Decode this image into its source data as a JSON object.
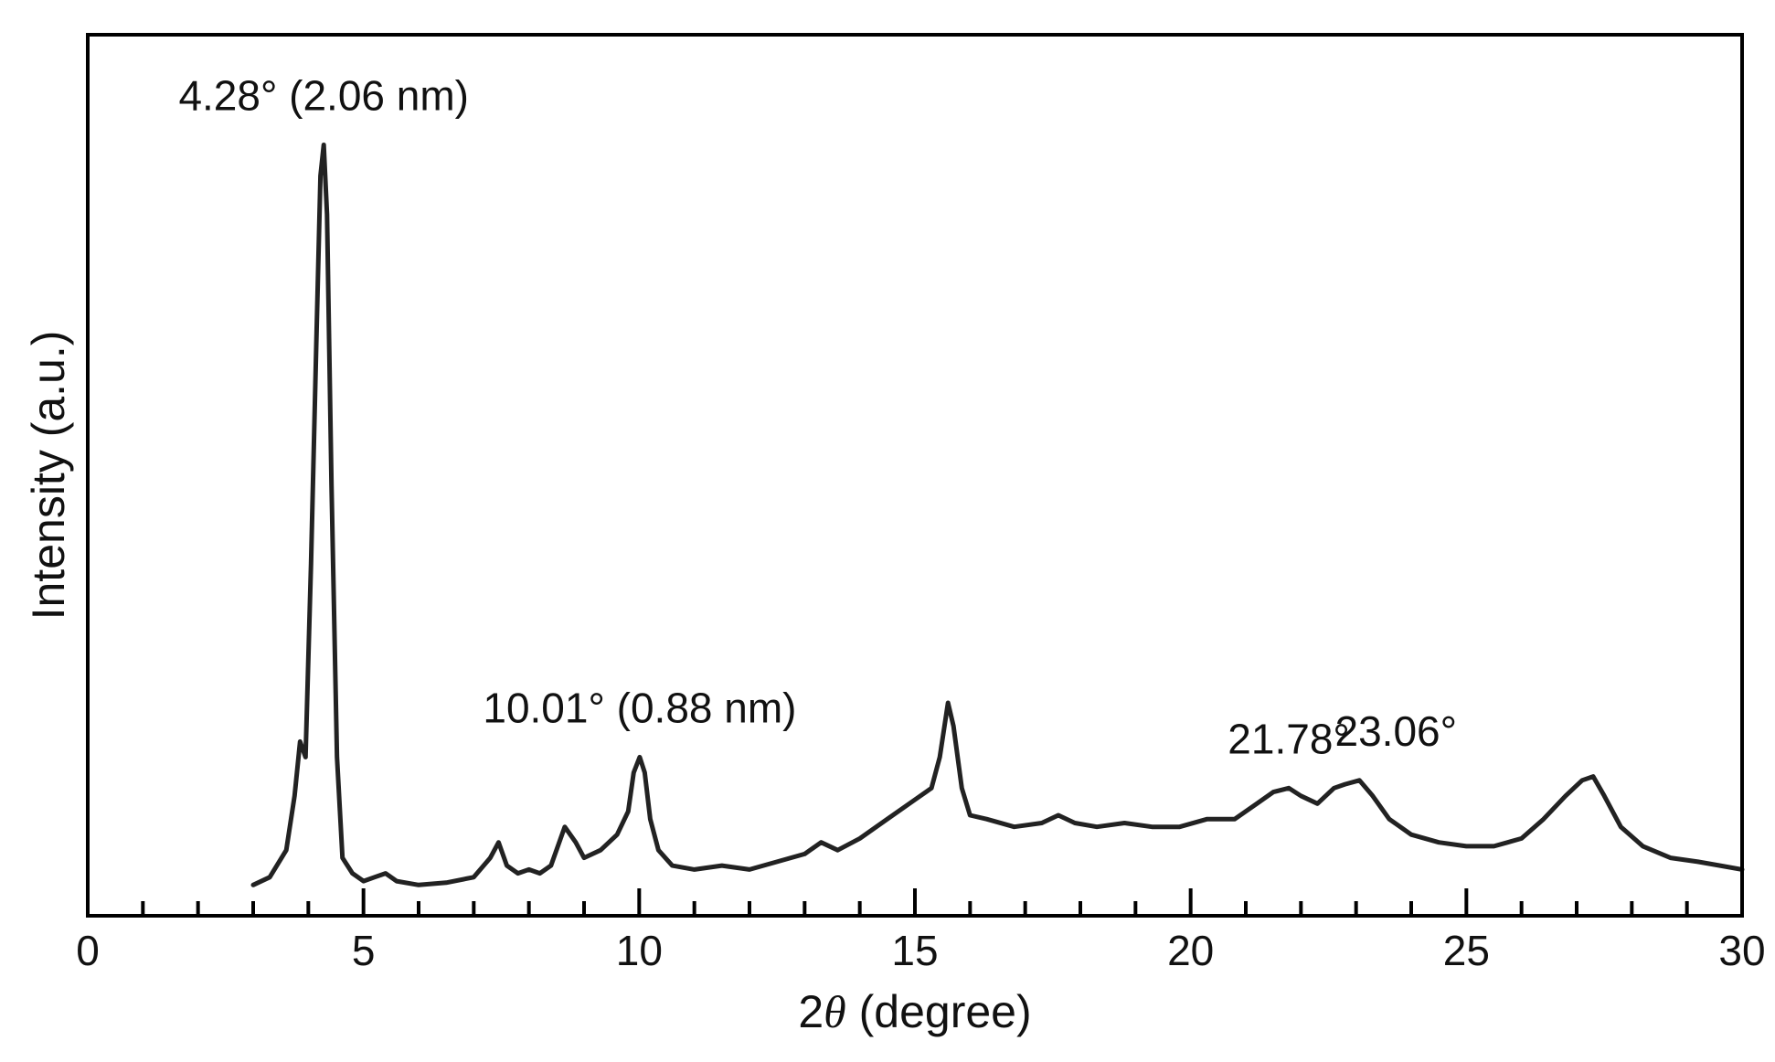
{
  "chart_data": {
    "type": "line",
    "title": "",
    "xlabel": {
      "prefix": "2",
      "symbol": "θ",
      "suffix": " (degree)"
    },
    "ylabel": "Intensity (a.u.)",
    "xlim": [
      0,
      30
    ],
    "ylim": [
      0,
      100
    ],
    "x_major_ticks": [
      0,
      5,
      10,
      15,
      20,
      25,
      30
    ],
    "x_tick_labels": [
      "0",
      "5",
      "10",
      "15",
      "20",
      "25",
      "30"
    ],
    "x_minor_step": 1,
    "y_ticks_shown": false,
    "grid": false,
    "legend": "none",
    "line_color": "#222222",
    "series": [
      {
        "x": [
          3.0,
          3.3,
          3.6,
          3.75,
          3.85,
          3.95,
          4.05,
          4.15,
          4.22,
          4.28,
          4.34,
          4.42,
          4.52,
          4.62,
          4.8,
          5.0,
          5.2,
          5.4,
          5.6,
          6.0,
          6.5,
          7.0,
          7.3,
          7.45,
          7.6,
          7.8,
          8.0,
          8.2,
          8.4,
          8.65,
          8.85,
          9.0,
          9.3,
          9.6,
          9.8,
          9.9,
          10.01,
          10.1,
          10.2,
          10.35,
          10.6,
          11.0,
          11.5,
          12.0,
          12.5,
          13.0,
          13.3,
          13.6,
          14.0,
          14.5,
          15.0,
          15.3,
          15.45,
          15.6,
          15.7,
          15.85,
          16.0,
          16.3,
          16.8,
          17.3,
          17.6,
          17.9,
          18.3,
          18.8,
          19.3,
          19.8,
          20.3,
          20.8,
          21.2,
          21.5,
          21.78,
          22.0,
          22.3,
          22.6,
          22.8,
          23.06,
          23.3,
          23.6,
          24.0,
          24.5,
          25.0,
          25.5,
          26.0,
          26.4,
          26.8,
          27.1,
          27.3,
          27.5,
          27.8,
          28.2,
          28.7,
          29.2,
          29.6,
          30.0
        ],
        "y": [
          3.5,
          4.5,
          8,
          15,
          22,
          20,
          45,
          75,
          95,
          99,
          90,
          55,
          20,
          7,
          5,
          4,
          4.5,
          5,
          4,
          3.5,
          3.8,
          4.5,
          7,
          9,
          6,
          5,
          5.5,
          5,
          6,
          11,
          9,
          7,
          8,
          10,
          13,
          18,
          20,
          18,
          12,
          8,
          6,
          5.5,
          6,
          5.5,
          6.5,
          7.5,
          9,
          8,
          9.5,
          12,
          14.5,
          16,
          20,
          27,
          24,
          16,
          12.5,
          12,
          11,
          11.5,
          12.5,
          11.5,
          11,
          11.5,
          11,
          11,
          12,
          12,
          14,
          15.5,
          16,
          15,
          14,
          16,
          16.5,
          17,
          15,
          12,
          10,
          9,
          8.5,
          8.5,
          9.5,
          12,
          15,
          17,
          17.5,
          15,
          11,
          8.5,
          7,
          6.5,
          6,
          5.5
        ]
      }
    ],
    "annotations": [
      {
        "text": "4.28° (2.06 nm)",
        "x": 4.28
      },
      {
        "text": "10.01° (0.88 nm)",
        "x": 10.01
      },
      {
        "text": "21.78°",
        "x": 21.78
      },
      {
        "text": "23.06°",
        "x": 23.06
      }
    ]
  }
}
